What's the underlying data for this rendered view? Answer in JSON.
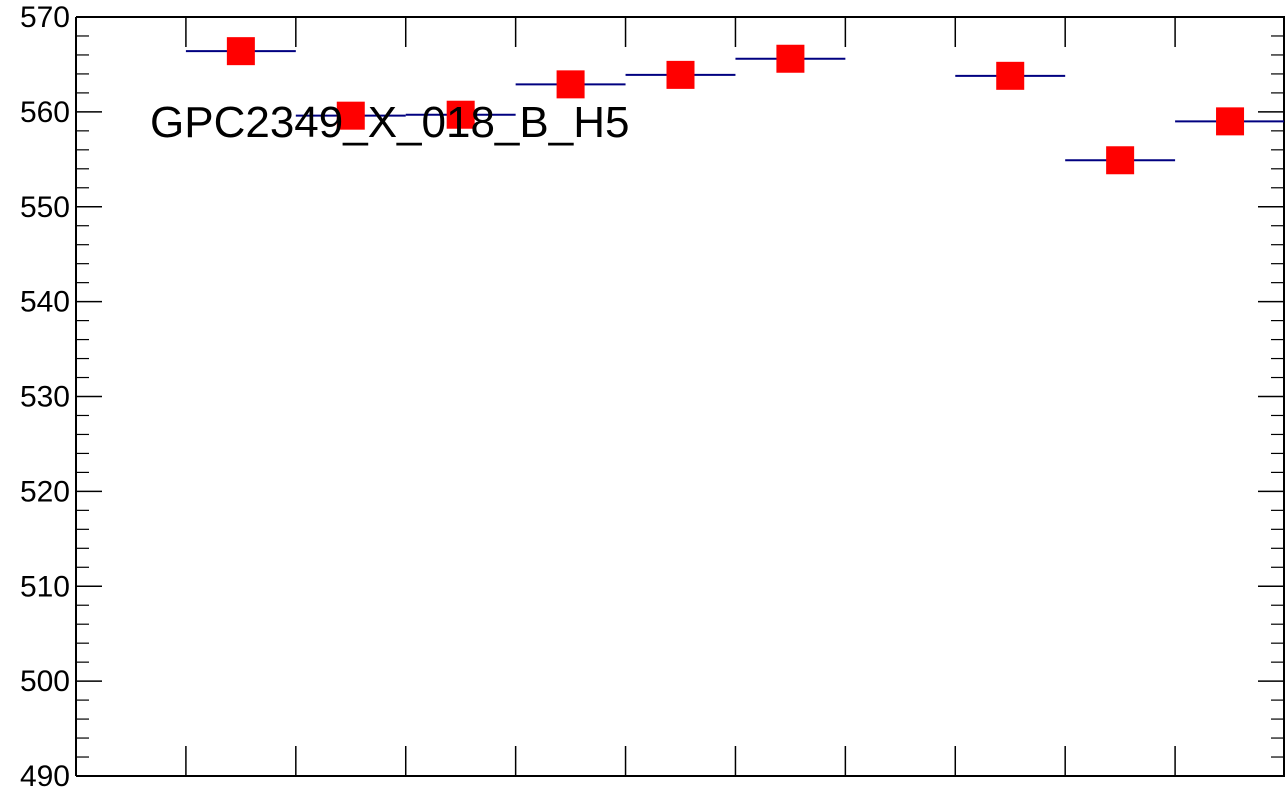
{
  "chart_data": {
    "type": "scatter",
    "title": "GPC2349_X_018_B_H5",
    "xlabel": "",
    "ylabel": "",
    "ylim": [
      490,
      570
    ],
    "yticks": [
      "490",
      "500",
      "510",
      "520",
      "530",
      "540",
      "550",
      "560",
      "570"
    ],
    "grid": false,
    "legend": "none",
    "marker_color": "#ff0000",
    "bar_color": "#000080",
    "axis_color": "#000000",
    "n_bins": 11,
    "series": [
      {
        "values": [
          566.4,
          559.6,
          559.7,
          562.9,
          563.9,
          565.6,
          null,
          563.8,
          554.9,
          559.0
        ]
      }
    ]
  }
}
